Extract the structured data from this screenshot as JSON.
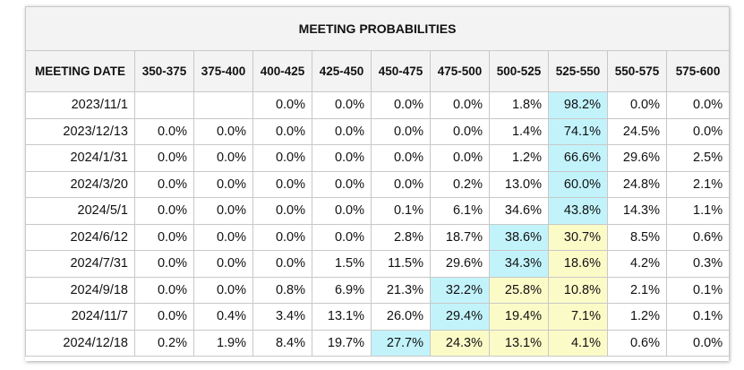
{
  "title": "MEETING PROBABILITIES",
  "columns": [
    "MEETING DATE",
    "350-375",
    "375-400",
    "400-425",
    "425-450",
    "450-475",
    "475-500",
    "500-525",
    "525-550",
    "550-575",
    "575-600"
  ],
  "colors": {
    "highlight_blue": "#c2f3fb",
    "highlight_yellow": "#fbfbc8"
  },
  "rows": [
    {
      "date": "2023/11/1",
      "values": [
        "",
        "",
        "0.0%",
        "0.0%",
        "0.0%",
        "0.0%",
        "1.8%",
        "98.2%",
        "0.0%",
        "0.0%"
      ],
      "highlight": [
        "",
        "",
        "",
        "",
        "",
        "",
        "",
        "blue",
        "",
        ""
      ]
    },
    {
      "date": "2023/12/13",
      "values": [
        "0.0%",
        "0.0%",
        "0.0%",
        "0.0%",
        "0.0%",
        "0.0%",
        "1.4%",
        "74.1%",
        "24.5%",
        "0.0%"
      ],
      "highlight": [
        "",
        "",
        "",
        "",
        "",
        "",
        "",
        "blue",
        "",
        ""
      ]
    },
    {
      "date": "2024/1/31",
      "values": [
        "0.0%",
        "0.0%",
        "0.0%",
        "0.0%",
        "0.0%",
        "0.0%",
        "1.2%",
        "66.6%",
        "29.6%",
        "2.5%"
      ],
      "highlight": [
        "",
        "",
        "",
        "",
        "",
        "",
        "",
        "blue",
        "",
        ""
      ]
    },
    {
      "date": "2024/3/20",
      "values": [
        "0.0%",
        "0.0%",
        "0.0%",
        "0.0%",
        "0.0%",
        "0.2%",
        "13.0%",
        "60.0%",
        "24.8%",
        "2.1%"
      ],
      "highlight": [
        "",
        "",
        "",
        "",
        "",
        "",
        "",
        "blue",
        "",
        ""
      ]
    },
    {
      "date": "2024/5/1",
      "values": [
        "0.0%",
        "0.0%",
        "0.0%",
        "0.0%",
        "0.1%",
        "6.1%",
        "34.6%",
        "43.8%",
        "14.3%",
        "1.1%"
      ],
      "highlight": [
        "",
        "",
        "",
        "",
        "",
        "",
        "",
        "blue",
        "",
        ""
      ]
    },
    {
      "date": "2024/6/12",
      "values": [
        "0.0%",
        "0.0%",
        "0.0%",
        "0.0%",
        "2.8%",
        "18.7%",
        "38.6%",
        "30.7%",
        "8.5%",
        "0.6%"
      ],
      "highlight": [
        "",
        "",
        "",
        "",
        "",
        "",
        "blue",
        "yellow",
        "",
        ""
      ]
    },
    {
      "date": "2024/7/31",
      "values": [
        "0.0%",
        "0.0%",
        "0.0%",
        "1.5%",
        "11.5%",
        "29.6%",
        "34.3%",
        "18.6%",
        "4.2%",
        "0.3%"
      ],
      "highlight": [
        "",
        "",
        "",
        "",
        "",
        "",
        "blue",
        "yellow",
        "",
        ""
      ]
    },
    {
      "date": "2024/9/18",
      "values": [
        "0.0%",
        "0.0%",
        "0.8%",
        "6.9%",
        "21.3%",
        "32.2%",
        "25.8%",
        "10.8%",
        "2.1%",
        "0.1%"
      ],
      "highlight": [
        "",
        "",
        "",
        "",
        "",
        "blue",
        "yellow",
        "yellow",
        "",
        ""
      ]
    },
    {
      "date": "2024/11/7",
      "values": [
        "0.0%",
        "0.4%",
        "3.4%",
        "13.1%",
        "26.0%",
        "29.4%",
        "19.4%",
        "7.1%",
        "1.2%",
        "0.1%"
      ],
      "highlight": [
        "",
        "",
        "",
        "",
        "",
        "blue",
        "yellow",
        "yellow",
        "",
        ""
      ]
    },
    {
      "date": "2024/12/18",
      "values": [
        "0.2%",
        "1.9%",
        "8.4%",
        "19.7%",
        "27.7%",
        "24.3%",
        "13.1%",
        "4.1%",
        "0.6%",
        "0.0%"
      ],
      "highlight": [
        "",
        "",
        "",
        "",
        "blue",
        "yellow",
        "yellow",
        "yellow",
        "",
        ""
      ]
    }
  ]
}
